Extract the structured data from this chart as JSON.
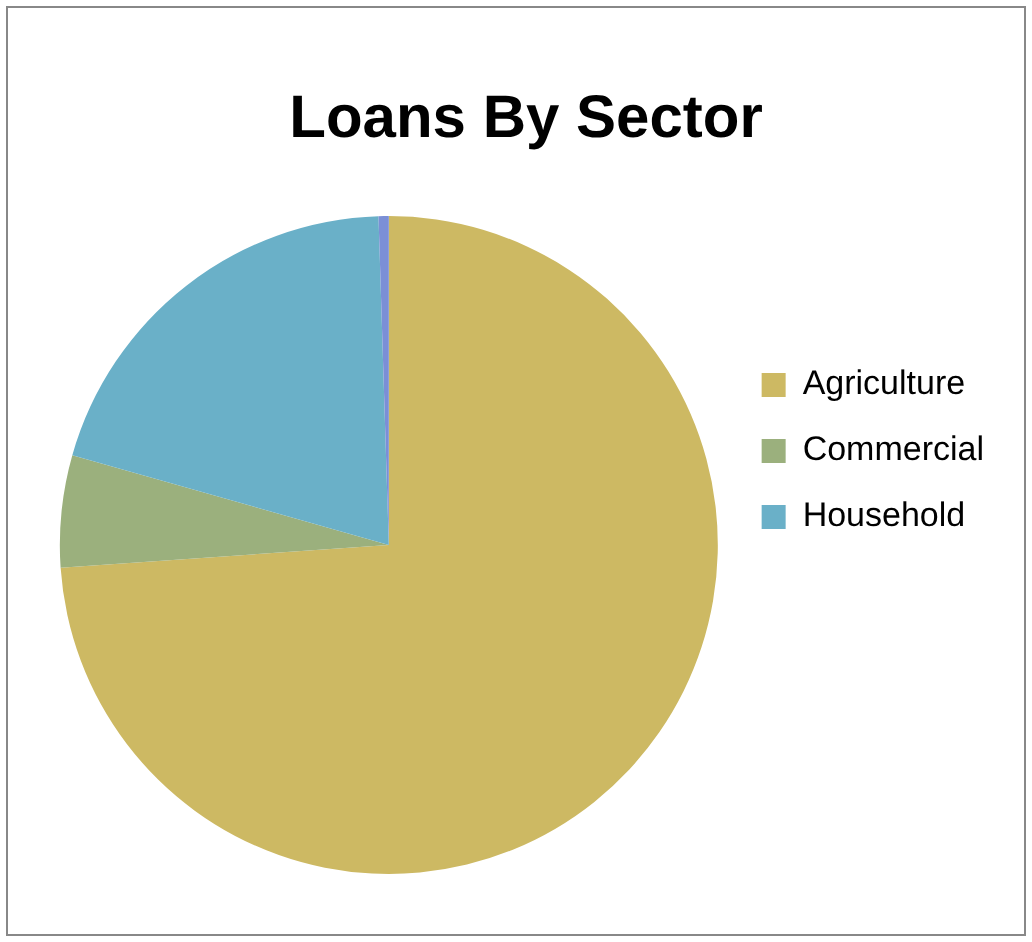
{
  "chart_data": {
    "type": "pie",
    "title": "Loans By Sector",
    "categories": [
      "Agriculture",
      "Commercial",
      "Household",
      null
    ],
    "values": [
      73.9,
      5.5,
      20.1,
      0.5
    ],
    "colors": [
      "#cdb963",
      "#9bb07d",
      "#6ab0c8",
      "#7b8fd6"
    ],
    "legend": "right"
  }
}
